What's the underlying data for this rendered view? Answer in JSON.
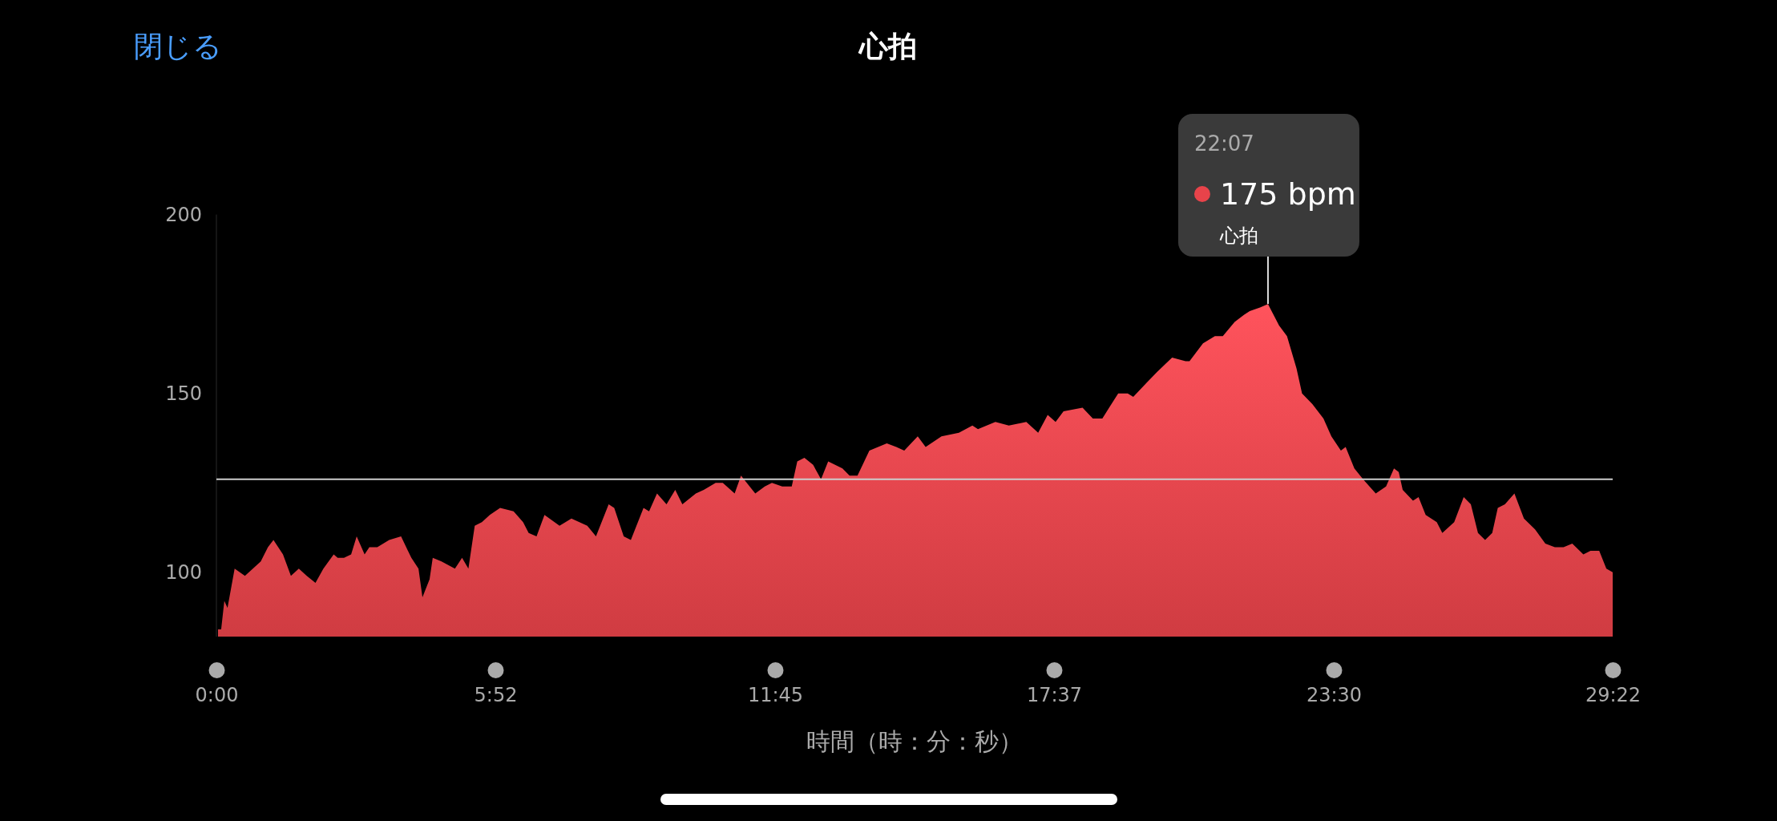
{
  "chart_data": {
    "type": "area",
    "title": "心拍",
    "xlabel": "時間（時：分：秒）",
    "annotations": [
      "閉じる",
      "22:07",
      "175 bpm",
      {
        "text": "心拍",
        "x": 1327,
        "y": 175
      }
    ],
    "xlim": [
      0,
      1762
    ],
    "ylim": [
      82,
      200
    ],
    "xticks": [
      {
        "value": 0,
        "label": "0:00"
      },
      {
        "value": 352,
        "label": "5:52"
      },
      {
        "value": 705,
        "label": "11:45"
      },
      {
        "value": 1057,
        "label": "17:37"
      },
      {
        "value": 1410,
        "label": "23:30"
      },
      {
        "value": 1762,
        "label": "29:22"
      }
    ],
    "yticks": [
      100,
      150,
      200
    ],
    "ref_lines": [
      {
        "axis": "y",
        "value": 126,
        "color": "#cccccc"
      }
    ],
    "series": [
      {
        "color": "#e8434a",
        "x": [
          2,
          6,
          10,
          14,
          23,
          36,
          56,
          65,
          72,
          84,
          94,
          104,
          114,
          125,
          135,
          148,
          153,
          161,
          170,
          177,
          187,
          193,
          203,
          218,
          233,
          246,
          255,
          260,
          269,
          273,
          284,
          301,
          310,
          318,
          326,
          335,
          345,
          358,
          375,
          387,
          394,
          404,
          414,
          433,
          448,
          468,
          479,
          495,
          502,
          514,
          523,
          539,
          546,
          556,
          568,
          579,
          588,
          605,
          615,
          630,
          639,
          654,
          662,
          680,
          692,
          701,
          714,
          726,
          733,
          742,
          753,
          763,
          772,
          790,
          799,
          809,
          824,
          846,
          858,
          868,
          885,
          895,
          915,
          937,
          954,
          961,
          983,
          1000,
          1022,
          1037,
          1049,
          1059,
          1069,
          1093,
          1106,
          1118,
          1138,
          1150,
          1157,
          1174,
          1187,
          1206,
          1223,
          1228,
          1245,
          1260,
          1270,
          1285,
          1297,
          1304,
          1317,
          1327,
          1341,
          1351,
          1363,
          1370,
          1383,
          1397,
          1407,
          1419,
          1425,
          1436,
          1447,
          1463,
          1476,
          1486,
          1492,
          1497,
          1510,
          1517,
          1526,
          1540,
          1547,
          1562,
          1574,
          1583,
          1592,
          1601,
          1610,
          1617,
          1626,
          1638,
          1650,
          1664,
          1677,
          1689,
          1700,
          1711,
          1725,
          1734,
          1745,
          1754,
          1762
        ],
        "values": [
          84,
          84,
          92,
          90,
          101,
          99,
          103,
          107,
          109,
          105,
          99,
          101,
          99,
          97,
          101,
          105,
          104,
          104,
          105,
          110,
          105,
          107,
          107,
          109,
          110,
          104,
          101,
          93,
          98,
          104,
          103,
          101,
          104,
          101,
          113,
          114,
          116,
          118,
          117,
          114,
          111,
          110,
          116,
          113,
          115,
          113,
          110,
          119,
          118,
          110,
          109,
          118,
          117,
          122,
          119,
          123,
          119,
          122,
          123,
          125,
          125,
          122,
          127,
          122,
          124,
          125,
          124,
          124,
          131,
          132,
          130,
          126,
          131,
          129,
          127,
          127,
          134,
          136,
          135,
          134,
          138,
          135,
          138,
          139,
          141,
          140,
          142,
          141,
          142,
          139,
          144,
          142,
          145,
          146,
          143,
          143,
          150,
          150,
          149,
          153,
          156,
          160,
          159,
          159,
          164,
          166,
          166,
          170,
          172,
          173,
          174,
          175,
          169,
          166,
          157,
          150,
          147,
          143,
          138,
          134,
          135,
          129,
          126,
          122,
          124,
          129,
          128,
          123,
          120,
          121,
          116,
          114,
          111,
          114,
          121,
          119,
          111,
          109,
          111,
          118,
          119,
          122,
          115,
          112,
          108,
          107,
          107,
          108,
          105,
          106,
          106,
          101,
          100
        ]
      }
    ]
  }
}
